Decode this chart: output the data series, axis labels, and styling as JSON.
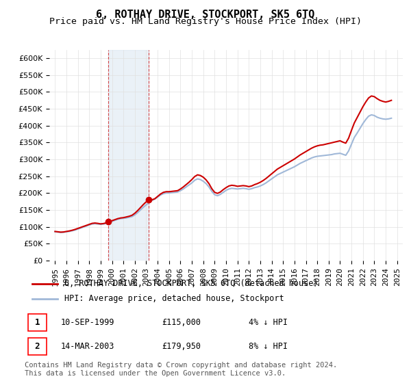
{
  "title": "6, ROTHAY DRIVE, STOCKPORT, SK5 6TQ",
  "subtitle": "Price paid vs. HM Land Registry's House Price Index (HPI)",
  "footer": "Contains HM Land Registry data © Crown copyright and database right 2024.\nThis data is licensed under the Open Government Licence v3.0.",
  "legend_line1": "6, ROTHAY DRIVE, STOCKPORT, SK5 6TQ (detached house)",
  "legend_line2": "HPI: Average price, detached house, Stockport",
  "transactions": [
    {
      "label": "1",
      "date": "10-SEP-1999",
      "price": 115000,
      "note": "4% ↓ HPI",
      "x": 1999.69
    },
    {
      "label": "2",
      "date": "14-MAR-2003",
      "price": 179950,
      "note": "8% ↓ HPI",
      "x": 2003.2
    }
  ],
  "hpi_color": "#a0b8d8",
  "price_color": "#cc0000",
  "marker_color": "#cc0000",
  "highlight_color": "#d6e4f0",
  "highlight_alpha": 0.5,
  "ylim": [
    0,
    625000
  ],
  "yticks": [
    0,
    50000,
    100000,
    150000,
    200000,
    250000,
    300000,
    350000,
    400000,
    450000,
    500000,
    550000,
    600000
  ],
  "xlim": [
    1994.5,
    2025.5
  ],
  "grid_color": "#e0e0e0",
  "background_color": "#ffffff",
  "title_fontsize": 11,
  "subtitle_fontsize": 9.5,
  "tick_fontsize": 8,
  "legend_fontsize": 8.5,
  "footer_fontsize": 7.5,
  "hpi_data": {
    "years": [
      1995.0,
      1995.25,
      1995.5,
      1995.75,
      1996.0,
      1996.25,
      1996.5,
      1996.75,
      1997.0,
      1997.25,
      1997.5,
      1997.75,
      1998.0,
      1998.25,
      1998.5,
      1998.75,
      1999.0,
      1999.25,
      1999.5,
      1999.75,
      2000.0,
      2000.25,
      2000.5,
      2000.75,
      2001.0,
      2001.25,
      2001.5,
      2001.75,
      2002.0,
      2002.25,
      2002.5,
      2002.75,
      2003.0,
      2003.25,
      2003.5,
      2003.75,
      2004.0,
      2004.25,
      2004.5,
      2004.75,
      2005.0,
      2005.25,
      2005.5,
      2005.75,
      2006.0,
      2006.25,
      2006.5,
      2006.75,
      2007.0,
      2007.25,
      2007.5,
      2007.75,
      2008.0,
      2008.25,
      2008.5,
      2008.75,
      2009.0,
      2009.25,
      2009.5,
      2009.75,
      2010.0,
      2010.25,
      2010.5,
      2010.75,
      2011.0,
      2011.25,
      2011.5,
      2011.75,
      2012.0,
      2012.25,
      2012.5,
      2012.75,
      2013.0,
      2013.25,
      2013.5,
      2013.75,
      2014.0,
      2014.25,
      2014.5,
      2014.75,
      2015.0,
      2015.25,
      2015.5,
      2015.75,
      2016.0,
      2016.25,
      2016.5,
      2016.75,
      2017.0,
      2017.25,
      2017.5,
      2017.75,
      2018.0,
      2018.25,
      2018.5,
      2018.75,
      2019.0,
      2019.25,
      2019.5,
      2019.75,
      2020.0,
      2020.25,
      2020.5,
      2020.75,
      2021.0,
      2021.25,
      2021.5,
      2021.75,
      2022.0,
      2022.25,
      2022.5,
      2022.75,
      2023.0,
      2023.25,
      2023.5,
      2023.75,
      2024.0,
      2024.25,
      2024.5
    ],
    "values": [
      85000,
      84000,
      83000,
      83500,
      85000,
      86000,
      88000,
      90000,
      93000,
      96000,
      99000,
      102000,
      105000,
      108000,
      109000,
      108000,
      107000,
      108000,
      110000,
      113000,
      116000,
      119000,
      122000,
      124000,
      125000,
      126000,
      128000,
      130000,
      135000,
      142000,
      150000,
      158000,
      165000,
      172000,
      178000,
      182000,
      188000,
      194000,
      198000,
      200000,
      200000,
      201000,
      202000,
      203000,
      207000,
      212000,
      218000,
      224000,
      230000,
      238000,
      242000,
      240000,
      235000,
      228000,
      218000,
      205000,
      195000,
      192000,
      196000,
      202000,
      208000,
      212000,
      214000,
      213000,
      212000,
      213000,
      214000,
      213000,
      211000,
      213000,
      216000,
      218000,
      221000,
      225000,
      230000,
      236000,
      242000,
      248000,
      254000,
      258000,
      262000,
      266000,
      270000,
      274000,
      278000,
      283000,
      288000,
      292000,
      296000,
      300000,
      304000,
      307000,
      309000,
      310000,
      311000,
      312000,
      313000,
      314000,
      316000,
      317000,
      318000,
      315000,
      312000,
      325000,
      345000,
      365000,
      378000,
      392000,
      406000,
      418000,
      428000,
      432000,
      430000,
      425000,
      422000,
      420000,
      419000,
      420000,
      422000
    ]
  },
  "price_data": {
    "years": [
      1995.0,
      1995.25,
      1995.5,
      1995.75,
      1996.0,
      1996.25,
      1996.5,
      1996.75,
      1997.0,
      1997.25,
      1997.5,
      1997.75,
      1998.0,
      1998.25,
      1998.5,
      1998.75,
      1999.0,
      1999.25,
      1999.5,
      1999.75,
      2000.0,
      2000.25,
      2000.5,
      2000.75,
      2001.0,
      2001.25,
      2001.5,
      2001.75,
      2002.0,
      2002.25,
      2002.5,
      2002.75,
      2003.0,
      2003.25,
      2003.5,
      2003.75,
      2004.0,
      2004.25,
      2004.5,
      2004.75,
      2005.0,
      2005.25,
      2005.5,
      2005.75,
      2006.0,
      2006.25,
      2006.5,
      2006.75,
      2007.0,
      2007.25,
      2007.5,
      2007.75,
      2008.0,
      2008.25,
      2008.5,
      2008.75,
      2009.0,
      2009.25,
      2009.5,
      2009.75,
      2010.0,
      2010.25,
      2010.5,
      2010.75,
      2011.0,
      2011.25,
      2011.5,
      2011.75,
      2012.0,
      2012.25,
      2012.5,
      2012.75,
      2013.0,
      2013.25,
      2013.5,
      2013.75,
      2014.0,
      2014.25,
      2014.5,
      2014.75,
      2015.0,
      2015.25,
      2015.5,
      2015.75,
      2016.0,
      2016.25,
      2016.5,
      2016.75,
      2017.0,
      2017.25,
      2017.5,
      2017.75,
      2018.0,
      2018.25,
      2018.5,
      2018.75,
      2019.0,
      2019.25,
      2019.5,
      2019.75,
      2020.0,
      2020.25,
      2020.5,
      2020.75,
      2021.0,
      2021.25,
      2021.5,
      2021.75,
      2022.0,
      2022.25,
      2022.5,
      2022.75,
      2023.0,
      2023.25,
      2023.5,
      2023.75,
      2024.0,
      2024.25,
      2024.5
    ],
    "values": [
      86000,
      85000,
      84000,
      84500,
      86000,
      87500,
      89500,
      92000,
      95000,
      98000,
      101000,
      104000,
      107000,
      110000,
      111000,
      110000,
      108500,
      109500,
      111500,
      115000,
      118000,
      121000,
      124000,
      126000,
      127000,
      129000,
      131000,
      134000,
      140000,
      148000,
      157000,
      166000,
      174000,
      180000,
      179950,
      183000,
      190000,
      197000,
      202000,
      204000,
      204000,
      205000,
      206000,
      207000,
      212000,
      218000,
      225000,
      232000,
      240000,
      249000,
      254000,
      252000,
      247000,
      239000,
      228000,
      213000,
      202000,
      199000,
      203000,
      210000,
      216000,
      221000,
      223000,
      222000,
      220000,
      221000,
      222000,
      221000,
      219000,
      221000,
      225000,
      228000,
      232000,
      237000,
      243000,
      250000,
      257000,
      264000,
      271000,
      276000,
      281000,
      286000,
      291000,
      296000,
      301000,
      307000,
      313000,
      318000,
      323000,
      328000,
      333000,
      337000,
      340000,
      342000,
      343000,
      345000,
      347000,
      349000,
      351000,
      353000,
      355000,
      351000,
      348000,
      363000,
      386000,
      408000,
      424000,
      440000,
      456000,
      470000,
      482000,
      488000,
      486000,
      480000,
      475000,
      472000,
      470000,
      472000,
      475000
    ]
  }
}
